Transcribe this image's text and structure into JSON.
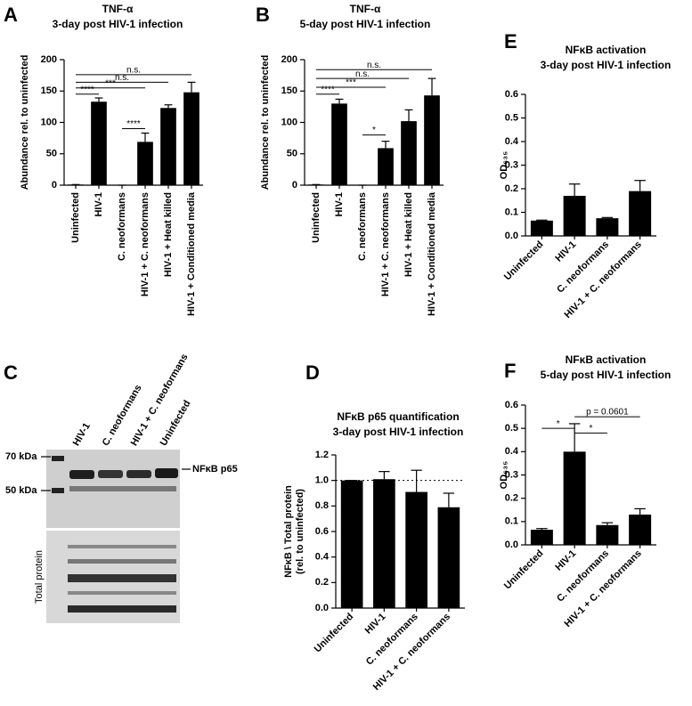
{
  "chart_data": [
    {
      "type": "bar",
      "panel_label": "A",
      "title": "TNF-α",
      "subtitle": "3-day post HIV-1 infection",
      "ylabel": [
        "Abundance rel. to uninfected"
      ],
      "categories": [
        "Uninfected",
        "HIV-1",
        "C. neoformans",
        "HIV-1 + C. neoformans",
        "HIV-1 + Heat killed",
        "HIV-1 + Conditioned media"
      ],
      "values": [
        1,
        133,
        0,
        69,
        123,
        148
      ],
      "errors": [
        0,
        6,
        0,
        14,
        5,
        16
      ],
      "color": "#000000",
      "ylim": [
        0,
        200
      ],
      "yticks": [
        0,
        50,
        100,
        150,
        200
      ],
      "annotations": [
        {
          "text": "****",
          "from": 0,
          "to": 1,
          "y": 145
        },
        {
          "text": "***",
          "from": 0,
          "to": 3,
          "y": 155
        },
        {
          "text": "n.s.",
          "from": 0,
          "to": 4,
          "y": 164
        },
        {
          "text": "n.s.",
          "from": 0,
          "to": 5,
          "y": 176
        },
        {
          "text": "****",
          "from": 2,
          "to": 3,
          "y": 90
        }
      ]
    },
    {
      "type": "bar",
      "panel_label": "B",
      "title": "TNF-α",
      "subtitle": "5-day post HIV-1 infection",
      "ylabel": [
        "Abundance rel. to uninfected"
      ],
      "categories": [
        "Uninfected",
        "HIV-1",
        "C. neoformans",
        "HIV-1 + C. neoformans",
        "HIV-1 + Heat killed",
        "HIV-1 + Conditioned media"
      ],
      "values": [
        1,
        130,
        0,
        59,
        102,
        143
      ],
      "errors": [
        0,
        7,
        0,
        11,
        18,
        27
      ],
      "color": "#000000",
      "ylim": [
        0,
        200
      ],
      "yticks": [
        0,
        50,
        100,
        150,
        200
      ],
      "annotations": [
        {
          "text": "****",
          "from": 0,
          "to": 1,
          "y": 145
        },
        {
          "text": "***",
          "from": 0,
          "to": 3,
          "y": 156
        },
        {
          "text": "n.s.",
          "from": 0,
          "to": 4,
          "y": 170
        },
        {
          "text": "n.s.",
          "from": 0,
          "to": 5,
          "y": 184
        },
        {
          "text": "*",
          "from": 2,
          "to": 3,
          "y": 80
        }
      ]
    },
    {
      "type": "bar",
      "panel_label": "D",
      "title": "NFκB p65 quantification",
      "subtitle": "3-day post HIV-1 infection",
      "ylabel": [
        "NFκB \\ Total protein",
        "(rel. to uninfected)"
      ],
      "categories": [
        "Uninfected",
        "HIV-1",
        "C. neoformans",
        "HIV-1 + C. neoformans"
      ],
      "values": [
        1.0,
        1.01,
        0.91,
        0.79
      ],
      "errors": [
        0,
        0.06,
        0.17,
        0.11
      ],
      "color": "#000000",
      "ylim": [
        0,
        1.2
      ],
      "yticks": [
        {
          "value": 0,
          "label": "0.0"
        },
        {
          "value": 0.2,
          "label": "0.2"
        },
        {
          "value": 0.4,
          "label": "0.4"
        },
        {
          "value": 0.6,
          "label": "0.6"
        },
        {
          "value": 0.8,
          "label": "0.8"
        },
        {
          "value": 1,
          "label": "1.0"
        },
        {
          "value": 1.2,
          "label": "1.2"
        }
      ],
      "ref_line": 1,
      "annotations": []
    },
    {
      "type": "bar",
      "panel_label": "E",
      "title": "NFκB activation",
      "subtitle": "3-day post HIV-1 infection",
      "ylabel": [
        "OD₆₃₅"
      ],
      "categories": [
        "Uninfected",
        "HIV-1",
        "C. neoformans",
        "HIV-1 + C. neoformans"
      ],
      "values": [
        0.065,
        0.17,
        0.075,
        0.19
      ],
      "errors": [
        0.002,
        0.05,
        0.003,
        0.045
      ],
      "color": "#000000",
      "ylim": [
        0,
        0.6
      ],
      "yticks": [
        {
          "value": 0,
          "label": "0.0"
        },
        0.1,
        0.2,
        0.3,
        0.4,
        0.5,
        0.6
      ],
      "annotations": []
    },
    {
      "type": "bar",
      "panel_label": "F",
      "title": "NFκB activation",
      "subtitle": "5-day post HIV-1 infection",
      "ylabel": [
        "OD₆₃₅"
      ],
      "categories": [
        "Uninfected",
        "HIV-1",
        "C. neoformans",
        "HIV-1 + C. neoformans"
      ],
      "values": [
        0.065,
        0.4,
        0.085,
        0.13
      ],
      "errors": [
        0.005,
        0.12,
        0.01,
        0.025
      ],
      "color": "#000000",
      "ylim": [
        0,
        0.6
      ],
      "yticks": [
        {
          "value": 0,
          "label": "0.0"
        },
        0.1,
        0.2,
        0.3,
        0.4,
        0.5,
        0.6
      ],
      "annotations": [
        {
          "text": "*",
          "from": 0,
          "to": 1,
          "y": 0.5
        },
        {
          "text": "*",
          "from": 1,
          "to": 2,
          "y": 0.48
        },
        {
          "text": "p = 0.0601",
          "from": 1,
          "to": 3,
          "y": 0.55
        }
      ]
    }
  ],
  "blot": {
    "panel_label": "C",
    "lanes": [
      "HIV-1",
      "C. neoformans",
      "HIV-1 + C. neoformans",
      "Uninfected"
    ],
    "markers": [
      "70 kDa",
      "50 kDa"
    ],
    "band_label": "NFκB p65",
    "lower_label": "Total protein"
  }
}
